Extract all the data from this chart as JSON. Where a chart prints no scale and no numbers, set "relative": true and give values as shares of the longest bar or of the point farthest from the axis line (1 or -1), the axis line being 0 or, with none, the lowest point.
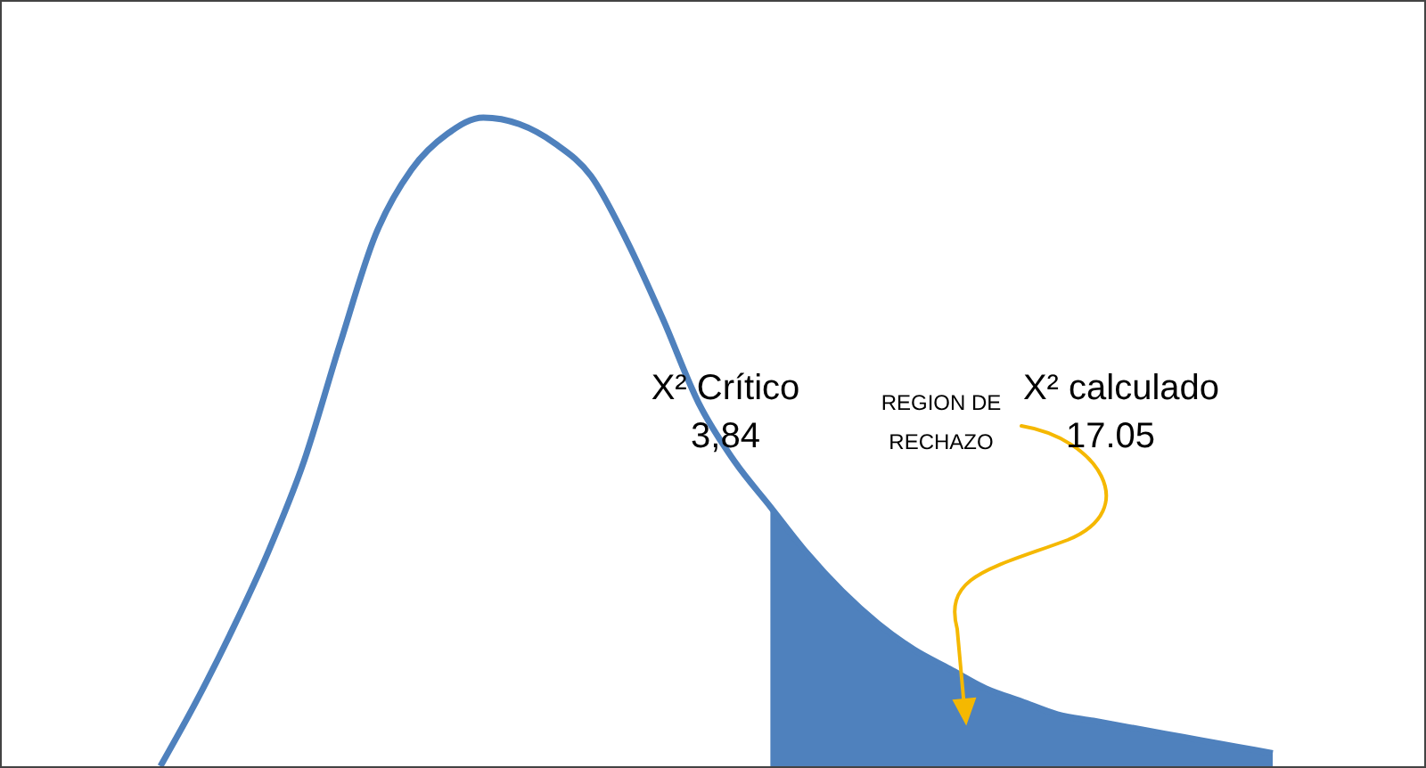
{
  "chart_data": {
    "type": "line",
    "relative": true,
    "categories": [
      null,
      null,
      null,
      null,
      null,
      null,
      null,
      null,
      null,
      null,
      null,
      null,
      null,
      null,
      null,
      null,
      null,
      null,
      null,
      null,
      null,
      null,
      null,
      null,
      null,
      null,
      null,
      null,
      null,
      null,
      null,
      null
    ],
    "series": [
      {
        "type": "line",
        "color": "#4f81bd",
        "values": [
          0,
          0.1,
          0.21,
          0.33,
          0.47,
          0.65,
          0.82,
          0.92,
          0.975,
          1.0,
          0.99,
          0.96,
          0.91,
          0.81,
          0.69,
          0.56,
          0.47,
          0.4,
          0.33,
          0.27,
          0.22,
          0.18,
          0.15,
          0.12,
          0.1,
          0.08,
          0.07,
          0.06,
          0.05,
          0.04,
          0.03,
          0.02
        ]
      },
      {
        "type": "area",
        "color": "#4f81bd",
        "values": [
          null,
          null,
          null,
          null,
          null,
          null,
          null,
          null,
          null,
          null,
          null,
          null,
          null,
          null,
          null,
          null,
          null,
          0.4,
          0.33,
          0.27,
          0.22,
          0.18,
          0.15,
          0.12,
          0.1,
          0.08,
          0.07,
          0.06,
          0.05,
          0.04,
          0.03,
          0.02
        ]
      }
    ],
    "annotations": [
      "X² Crítico",
      "3,84",
      "REGION DE RECHAZO",
      "X² calculado",
      "17.05"
    ],
    "grid": false,
    "legend": false
  }
}
